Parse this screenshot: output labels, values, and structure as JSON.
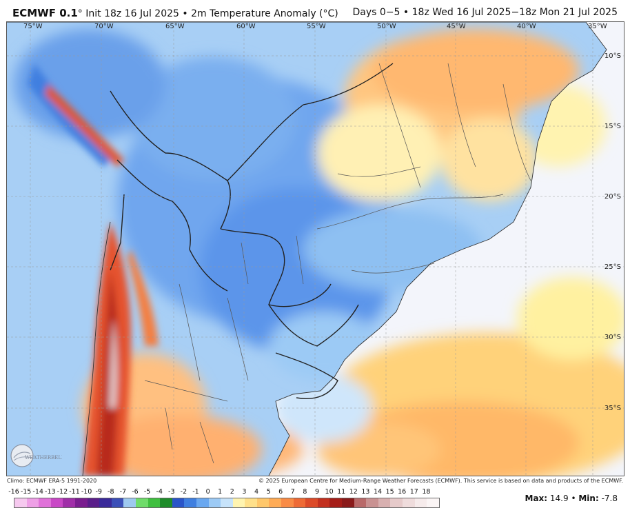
{
  "header": {
    "model": "ECMWF 0.1",
    "title_rest": "° Init 18z 16 Jul 2025 • 2m Temperature Anomaly (°C)",
    "right": "Days 0−5 • 18z Wed 16 Jul 2025−18z Mon 21 Jul 2025"
  },
  "map": {
    "lon_labels": [
      "75°W",
      "70°W",
      "65°W",
      "60°W",
      "55°W",
      "50°W",
      "45°W",
      "40°W",
      "35°W"
    ],
    "lat_labels": [
      "10°S",
      "15°S",
      "20°S",
      "25°S",
      "30°S",
      "35°S"
    ]
  },
  "footer": {
    "climo": "Climo: ECMWF ERA-5 1991-2020",
    "copyright": "© 2025 European Centre for Medium-Range Weather Forecasts (ECMWF). This service is based on data and products of the ECMWF."
  },
  "colorbar": {
    "ticks": [
      "-16",
      "-15",
      "-14",
      "-13",
      "-12",
      "-11",
      "-10",
      "-9",
      "-8",
      "-7",
      "-6",
      "-5",
      "-4",
      "-3",
      "-2",
      "-1",
      "0",
      "1",
      "2",
      "3",
      "4",
      "5",
      "6",
      "7",
      "8",
      "9",
      "10",
      "11",
      "12",
      "13",
      "14",
      "15",
      "16",
      "17",
      "18"
    ],
    "colors": [
      "#f6c9ef",
      "#ee9fe6",
      "#e071d9",
      "#c948c6",
      "#a02ea8",
      "#7a1d8f",
      "#5a1e8a",
      "#3a2a9a",
      "#3b4fb8",
      "#9ec9ef",
      "#6fdc6a",
      "#3fbf3f",
      "#1e8c2a",
      "#2a55c9",
      "#3f7fe0",
      "#6aa8f0",
      "#9ccaf5",
      "#c7e3fa",
      "#fff4b0",
      "#ffe08a",
      "#ffc76a",
      "#ffab55",
      "#f98b45",
      "#ee6a35",
      "#dc4a28",
      "#c3301f",
      "#a51d18",
      "#8a1a1a",
      "#b96a6a",
      "#c99292",
      "#d8b0b0",
      "#e6caca",
      "#efdcdc",
      "#f6ebeb",
      "#fbf5f5"
    ]
  },
  "stats": {
    "max_label": "Max:",
    "max": "14.9",
    "sep": " • ",
    "min_label": "Min:",
    "min": "-7.8"
  },
  "logo": {
    "text": "WEATHERBELL"
  }
}
